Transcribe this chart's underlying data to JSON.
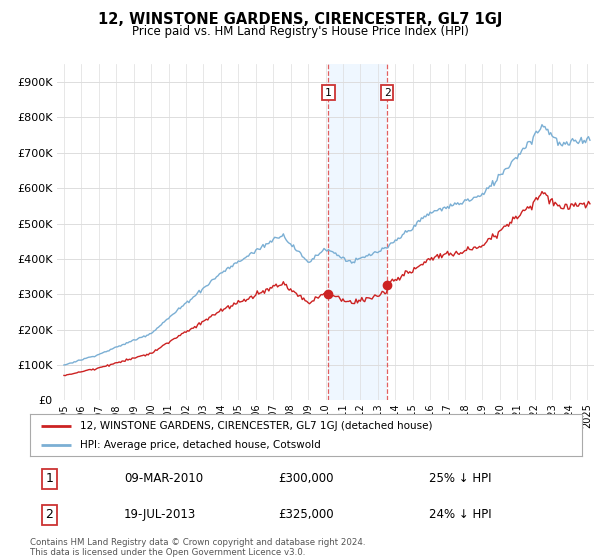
{
  "title": "12, WINSTONE GARDENS, CIRENCESTER, GL7 1GJ",
  "subtitle": "Price paid vs. HM Land Registry's House Price Index (HPI)",
  "ylim": [
    0,
    950000
  ],
  "yticks": [
    0,
    100000,
    200000,
    300000,
    400000,
    500000,
    600000,
    700000,
    800000,
    900000
  ],
  "x_start_year": 1995,
  "x_end_year": 2025,
  "hpi_color": "#7bafd4",
  "price_color": "#cc2222",
  "transaction1_year": 2010.17,
  "transaction1_value": 300000,
  "transaction2_year": 2013.54,
  "transaction2_value": 325000,
  "legend_line1": "12, WINSTONE GARDENS, CIRENCESTER, GL7 1GJ (detached house)",
  "legend_line2": "HPI: Average price, detached house, Cotswold",
  "table_row1_num": "1",
  "table_row1_date": "09-MAR-2010",
  "table_row1_price": "£300,000",
  "table_row1_hpi": "25% ↓ HPI",
  "table_row2_num": "2",
  "table_row2_date": "19-JUL-2013",
  "table_row2_price": "£325,000",
  "table_row2_hpi": "24% ↓ HPI",
  "footer": "Contains HM Land Registry data © Crown copyright and database right 2024.\nThis data is licensed under the Open Government Licence v3.0.",
  "background_color": "#ffffff",
  "grid_color": "#dddddd",
  "shaded_region_color": "#ddeeff",
  "shaded_region_alpha": 0.45
}
